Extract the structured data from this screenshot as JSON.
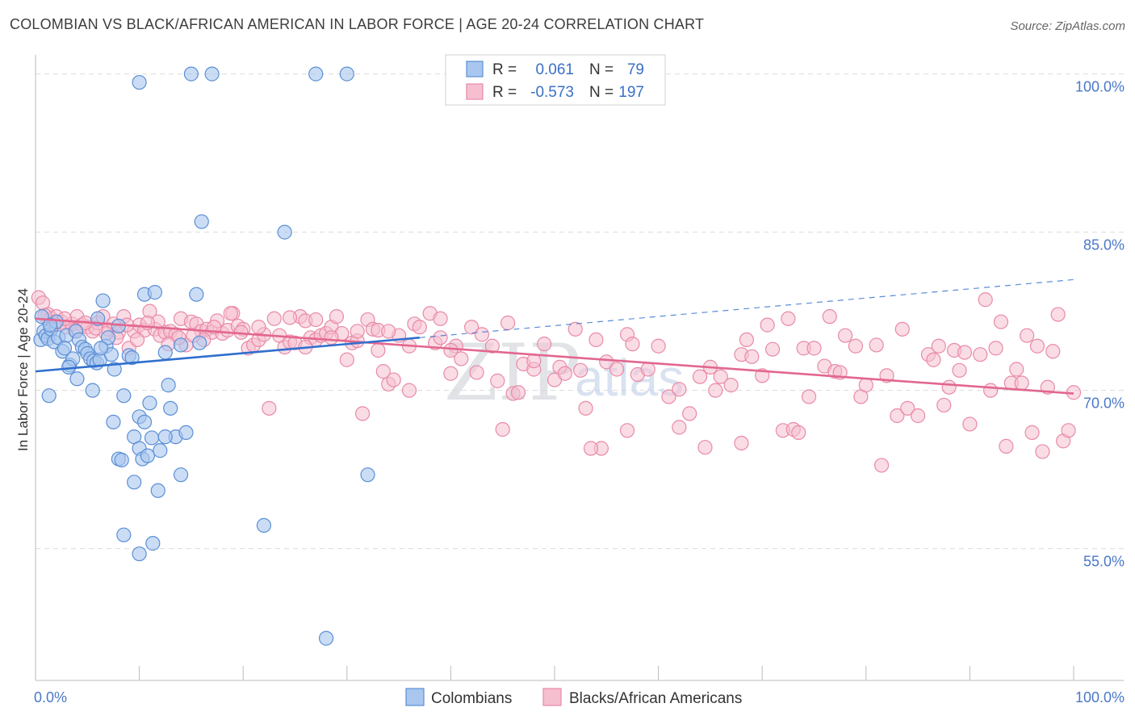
{
  "header": {
    "title": "COLOMBIAN VS BLACK/AFRICAN AMERICAN IN LABOR FORCE | AGE 20-24 CORRELATION CHART",
    "source": "Source: ZipAtlas.com"
  },
  "watermark": {
    "zip": "ZIP",
    "atlas": "atlas"
  },
  "colors": {
    "blue": "#5b8fd6",
    "blue_fill": "#a9c6ee",
    "blue_line": "#2f6fcd",
    "pink": "#e88aa8",
    "pink_fill": "#f6bfd0",
    "pink_line": "#e2678f",
    "grid": "#dcdcdc",
    "tick": "#4a78c8"
  },
  "legend": {
    "rows": [
      {
        "r_label": "R =",
        "r_value": "0.061",
        "n_label": "N =",
        "n_value": "79"
      },
      {
        "r_label": "R =",
        "r_value": "-0.573",
        "n_label": "N =",
        "n_value": "197"
      }
    ]
  },
  "chart_data": {
    "type": "scatter",
    "title": "COLOMBIAN VS BLACK/AFRICAN AMERICAN IN LABOR FORCE | AGE 20-24 CORRELATION CHART",
    "xlabel": "",
    "ylabel": "In Labor Force | Age 20-24",
    "xlim": [
      0,
      100
    ],
    "ylim": [
      42.5,
      101.5
    ],
    "x_tick_labels": [
      "0.0%",
      "100.0%"
    ],
    "y_ticks": [
      55,
      70,
      85,
      100
    ],
    "y_tick_labels": [
      "55.0%",
      "70.0%",
      "85.0%",
      "100.0%"
    ],
    "grid": true,
    "legend_position": "top-center",
    "series": [
      {
        "name": "Colombians",
        "r": 0.061,
        "n": 79,
        "trend": {
          "x0": 0,
          "y0": 71.8,
          "x1": 37,
          "y1": 75.0,
          "dash_x1": 100,
          "dash_y1": 80.5
        },
        "points": [
          [
            0.5,
            74.8
          ],
          [
            0.8,
            75.6
          ],
          [
            1.0,
            75.2
          ],
          [
            1.2,
            74.9
          ],
          [
            1.5,
            75.8
          ],
          [
            1.8,
            74.6
          ],
          [
            2.0,
            76.5
          ],
          [
            2.2,
            75.0
          ],
          [
            0.6,
            77.0
          ],
          [
            1.4,
            76.2
          ],
          [
            2.6,
            73.7
          ],
          [
            3.0,
            75.2
          ],
          [
            3.3,
            72.4
          ],
          [
            3.6,
            73.0
          ],
          [
            3.9,
            75.6
          ],
          [
            4.2,
            74.8
          ],
          [
            4.5,
            74.1
          ],
          [
            4.8,
            73.9
          ],
          [
            5.0,
            73.5
          ],
          [
            5.3,
            73.0
          ],
          [
            5.6,
            72.8
          ],
          [
            5.9,
            72.6
          ],
          [
            6.2,
            72.9
          ],
          [
            6.5,
            78.5
          ],
          [
            6.8,
            74.2
          ],
          [
            7.0,
            75.0
          ],
          [
            7.3,
            73.4
          ],
          [
            7.6,
            72.0
          ],
          [
            8.0,
            76.1
          ],
          [
            9.0,
            73.3
          ],
          [
            9.3,
            73.1
          ],
          [
            10.5,
            79.1
          ],
          [
            11.5,
            79.3
          ],
          [
            12.5,
            73.6
          ],
          [
            12.8,
            70.5
          ],
          [
            13.0,
            68.3
          ],
          [
            13.5,
            65.6
          ],
          [
            14.0,
            74.3
          ],
          [
            14.5,
            66.0
          ],
          [
            15.5,
            79.1
          ],
          [
            15.8,
            74.5
          ],
          [
            4.0,
            71.1
          ],
          [
            1.3,
            69.5
          ],
          [
            5.5,
            70.0
          ],
          [
            7.5,
            67.0
          ],
          [
            8.5,
            69.5
          ],
          [
            9.5,
            65.6
          ],
          [
            10.0,
            64.5
          ],
          [
            10.3,
            63.5
          ],
          [
            8.0,
            63.5
          ],
          [
            9.5,
            61.3
          ],
          [
            10.0,
            67.5
          ],
          [
            10.5,
            67.0
          ],
          [
            11.0,
            68.8
          ],
          [
            11.2,
            65.5
          ],
          [
            12.0,
            64.3
          ],
          [
            12.5,
            65.6
          ],
          [
            11.8,
            60.5
          ],
          [
            10.8,
            63.8
          ],
          [
            8.5,
            56.3
          ],
          [
            10.0,
            54.5
          ],
          [
            11.3,
            55.5
          ],
          [
            14.0,
            62.0
          ],
          [
            16.0,
            86.0
          ],
          [
            24.0,
            85.0
          ],
          [
            22.0,
            57.2
          ],
          [
            32.0,
            62.0
          ],
          [
            28.0,
            46.5
          ],
          [
            10.0,
            99.2
          ],
          [
            15.0,
            100.0
          ],
          [
            17.0,
            100.0
          ],
          [
            27.0,
            100.0
          ],
          [
            30.0,
            100.0
          ],
          [
            8.3,
            63.4
          ],
          [
            6.0,
            76.8
          ],
          [
            2.8,
            74.0
          ],
          [
            3.2,
            72.2
          ],
          [
            6.3,
            74.0
          ]
        ]
      },
      {
        "name": "Blacks/African Americans",
        "r": -0.573,
        "n": 197,
        "trend": {
          "x0": 0,
          "y0": 76.8,
          "x1": 100,
          "y1": 69.7
        },
        "points": [
          [
            0.3,
            78.8
          ],
          [
            0.7,
            78.3
          ],
          [
            1.2,
            77.2
          ],
          [
            1.5,
            76.8
          ],
          [
            2.0,
            77.0
          ],
          [
            2.5,
            76.5
          ],
          [
            3.0,
            76.0
          ],
          [
            3.5,
            76.3
          ],
          [
            4.0,
            77.0
          ],
          [
            4.5,
            76.2
          ],
          [
            5.0,
            76.0
          ],
          [
            5.5,
            75.6
          ],
          [
            6.0,
            76.4
          ],
          [
            6.5,
            77.0
          ],
          [
            7.0,
            75.8
          ],
          [
            7.5,
            76.3
          ],
          [
            8.0,
            75.5
          ],
          [
            8.5,
            77.0
          ],
          [
            9.0,
            74.0
          ],
          [
            9.5,
            75.6
          ],
          [
            10.0,
            76.2
          ],
          [
            10.5,
            75.7
          ],
          [
            11.0,
            77.5
          ],
          [
            11.5,
            75.8
          ],
          [
            12.0,
            75.2
          ],
          [
            12.5,
            75.5
          ],
          [
            13.0,
            75.6
          ],
          [
            13.5,
            75.3
          ],
          [
            14.0,
            76.8
          ],
          [
            14.5,
            74.3
          ],
          [
            15.0,
            76.5
          ],
          [
            15.5,
            76.3
          ],
          [
            16.0,
            75.6
          ],
          [
            16.5,
            75.8
          ],
          [
            17.0,
            75.5
          ],
          [
            17.5,
            76.6
          ],
          [
            18.0,
            75.4
          ],
          [
            18.5,
            75.7
          ],
          [
            19.0,
            77.3
          ],
          [
            19.5,
            76.1
          ],
          [
            20.0,
            75.8
          ],
          [
            20.5,
            74.0
          ],
          [
            21.0,
            74.3
          ],
          [
            21.5,
            74.8
          ],
          [
            22.0,
            75.3
          ],
          [
            22.5,
            68.3
          ],
          [
            23.0,
            76.8
          ],
          [
            23.5,
            75.2
          ],
          [
            24.0,
            74.1
          ],
          [
            24.5,
            74.6
          ],
          [
            25.0,
            74.5
          ],
          [
            25.5,
            77.0
          ],
          [
            26.0,
            76.6
          ],
          [
            26.5,
            75.0
          ],
          [
            27.0,
            74.8
          ],
          [
            27.5,
            75.2
          ],
          [
            28.0,
            75.4
          ],
          [
            28.5,
            76.0
          ],
          [
            29.0,
            77.0
          ],
          [
            29.5,
            75.4
          ],
          [
            30.0,
            72.9
          ],
          [
            30.5,
            74.5
          ],
          [
            31.0,
            74.7
          ],
          [
            31.5,
            67.8
          ],
          [
            32.0,
            76.7
          ],
          [
            32.5,
            75.8
          ],
          [
            33.0,
            75.7
          ],
          [
            33.5,
            71.8
          ],
          [
            34.0,
            70.6
          ],
          [
            34.5,
            71.0
          ],
          [
            35.0,
            75.2
          ],
          [
            36.0,
            70.0
          ],
          [
            36.5,
            76.3
          ],
          [
            37.0,
            76.0
          ],
          [
            38.0,
            77.3
          ],
          [
            38.5,
            74.5
          ],
          [
            39.0,
            75.0
          ],
          [
            40.0,
            71.6
          ],
          [
            40.5,
            74.2
          ],
          [
            41.0,
            73.0
          ],
          [
            42.0,
            76.0
          ],
          [
            42.5,
            71.7
          ],
          [
            43.0,
            75.3
          ],
          [
            44.0,
            74.2
          ],
          [
            44.5,
            70.9
          ],
          [
            45.0,
            66.3
          ],
          [
            46.0,
            69.7
          ],
          [
            46.5,
            69.8
          ],
          [
            47.0,
            72.5
          ],
          [
            48.0,
            72.0
          ],
          [
            49.0,
            74.4
          ],
          [
            50.0,
            71.0
          ],
          [
            50.5,
            72.2
          ],
          [
            51.0,
            71.6
          ],
          [
            52.0,
            75.8
          ],
          [
            52.5,
            71.9
          ],
          [
            53.0,
            68.3
          ],
          [
            54.0,
            74.8
          ],
          [
            54.5,
            64.5
          ],
          [
            55.0,
            72.7
          ],
          [
            56.0,
            72.0
          ],
          [
            57.0,
            75.3
          ],
          [
            57.5,
            74.4
          ],
          [
            58.0,
            71.5
          ],
          [
            59.0,
            72.0
          ],
          [
            60.0,
            74.2
          ],
          [
            61.0,
            69.4
          ],
          [
            62.0,
            70.1
          ],
          [
            63.0,
            67.8
          ],
          [
            64.0,
            71.3
          ],
          [
            64.5,
            64.6
          ],
          [
            65.0,
            72.2
          ],
          [
            65.5,
            70.0
          ],
          [
            66.0,
            71.3
          ],
          [
            67.0,
            70.5
          ],
          [
            68.0,
            73.4
          ],
          [
            68.5,
            74.8
          ],
          [
            69.0,
            73.2
          ],
          [
            70.0,
            71.4
          ],
          [
            70.5,
            76.2
          ],
          [
            71.0,
            73.9
          ],
          [
            72.0,
            66.2
          ],
          [
            72.5,
            76.8
          ],
          [
            73.0,
            66.3
          ],
          [
            73.5,
            66.0
          ],
          [
            74.0,
            74.0
          ],
          [
            74.5,
            69.4
          ],
          [
            75.0,
            74.0
          ],
          [
            76.0,
            72.3
          ],
          [
            76.5,
            77.0
          ],
          [
            77.0,
            71.8
          ],
          [
            77.5,
            71.7
          ],
          [
            78.0,
            75.2
          ],
          [
            79.0,
            74.2
          ],
          [
            79.5,
            69.4
          ],
          [
            80.0,
            70.5
          ],
          [
            81.0,
            74.3
          ],
          [
            81.5,
            62.9
          ],
          [
            82.0,
            71.4
          ],
          [
            83.0,
            67.6
          ],
          [
            83.5,
            75.8
          ],
          [
            84.0,
            68.3
          ],
          [
            85.0,
            67.6
          ],
          [
            86.0,
            73.4
          ],
          [
            86.5,
            72.9
          ],
          [
            87.0,
            74.2
          ],
          [
            87.5,
            68.6
          ],
          [
            88.0,
            70.3
          ],
          [
            88.5,
            73.8
          ],
          [
            89.0,
            71.9
          ],
          [
            89.5,
            73.6
          ],
          [
            90.0,
            66.8
          ],
          [
            91.0,
            73.4
          ],
          [
            91.5,
            78.6
          ],
          [
            92.0,
            70.0
          ],
          [
            92.5,
            74.0
          ],
          [
            93.0,
            76.5
          ],
          [
            93.5,
            64.7
          ],
          [
            94.0,
            70.7
          ],
          [
            94.5,
            72.0
          ],
          [
            95.0,
            70.7
          ],
          [
            95.5,
            75.2
          ],
          [
            96.0,
            66.0
          ],
          [
            96.5,
            74.2
          ],
          [
            97.0,
            64.2
          ],
          [
            97.5,
            70.3
          ],
          [
            98.0,
            73.7
          ],
          [
            98.5,
            77.2
          ],
          [
            99.0,
            65.2
          ],
          [
            99.5,
            66.2
          ],
          [
            100.0,
            69.8
          ],
          [
            68.0,
            65.0
          ],
          [
            57.0,
            66.2
          ],
          [
            62.0,
            66.5
          ],
          [
            53.5,
            64.5
          ],
          [
            48.0,
            72.8
          ],
          [
            45.5,
            76.4
          ],
          [
            40.0,
            73.8
          ],
          [
            39.0,
            76.8
          ],
          [
            36.0,
            74.2
          ],
          [
            34.0,
            75.6
          ],
          [
            33.0,
            73.8
          ],
          [
            31.0,
            75.6
          ],
          [
            28.5,
            75.0
          ],
          [
            27.0,
            76.7
          ],
          [
            26.0,
            74.1
          ],
          [
            24.5,
            76.9
          ],
          [
            21.5,
            76.0
          ],
          [
            19.8,
            75.5
          ],
          [
            18.8,
            77.3
          ],
          [
            17.2,
            76.0
          ],
          [
            16.2,
            74.8
          ],
          [
            15.2,
            75.2
          ],
          [
            13.8,
            75.0
          ],
          [
            12.8,
            74.4
          ],
          [
            11.8,
            76.5
          ],
          [
            10.8,
            76.4
          ],
          [
            9.8,
            74.8
          ],
          [
            8.8,
            76.2
          ],
          [
            7.8,
            75.0
          ],
          [
            6.8,
            75.4
          ],
          [
            5.8,
            75.9
          ],
          [
            4.8,
            76.4
          ],
          [
            3.8,
            75.7
          ],
          [
            2.8,
            76.8
          ],
          [
            1.8,
            76.3
          ],
          [
            0.9,
            77.1
          ]
        ]
      }
    ]
  }
}
